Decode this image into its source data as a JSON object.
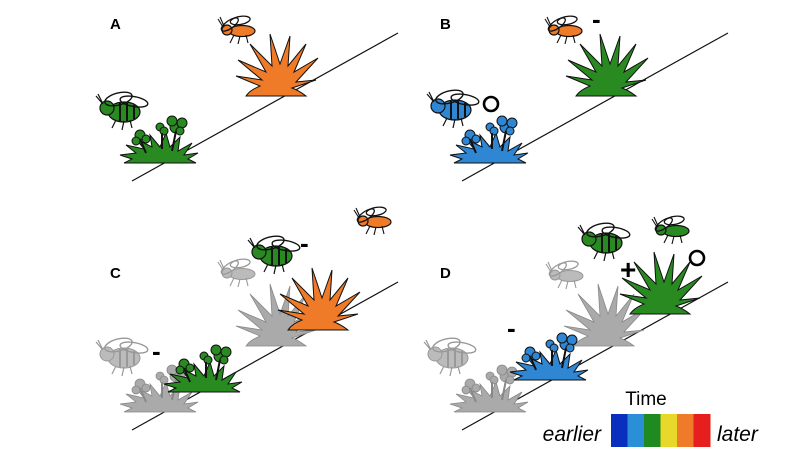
{
  "panels": {
    "a": {
      "letter": "A"
    },
    "b": {
      "letter": "B",
      "bee_symbol": "",
      "wasp_symbol": "-"
    },
    "c": {
      "letter": "C",
      "bee_symbol": "-",
      "flower_symbol": "-"
    },
    "d": {
      "letter": "D",
      "flower_symbol": "-",
      "bee_symbol": "+",
      "hover_symbol": ""
    }
  },
  "legend": {
    "title": "Time",
    "start_label": "earlier",
    "end_label": "later",
    "colors": [
      "#0a2fbf",
      "#2a8fd6",
      "#1f8a1f",
      "#e8d82a",
      "#ee7a2a",
      "#e61e1e"
    ]
  },
  "palette": {
    "blue": "#2f86d2",
    "green": "#2a8a22",
    "orange": "#ef7b29",
    "grey": "#aaaaaa",
    "outline": "#111111"
  }
}
